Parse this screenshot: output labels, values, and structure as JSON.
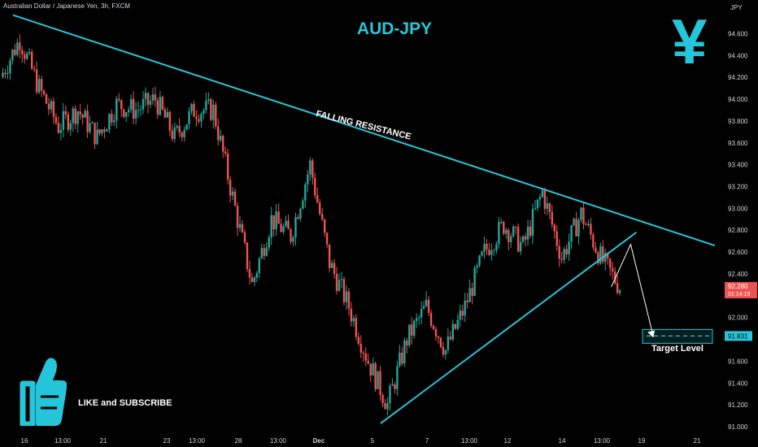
{
  "header": {
    "symbol_line": "Australian Dollar / Japanese Yen, 3h, FXCM",
    "currency": "JPY"
  },
  "title": "AUD-JPY",
  "icon": "yen-icon",
  "yen_glyph": "¥",
  "annotations": {
    "falling_resistance": "FALLING RESISTANCE",
    "target_level": "Target Level",
    "cta": "LIKE and SUBSCRIBE",
    "cta_icon": "thumbs-up-icon"
  },
  "colors": {
    "accent": "#26c6da",
    "bull": "#26a69a",
    "bear": "#ef5350",
    "background": "#000000"
  },
  "chart_data": {
    "type": "candlestick",
    "title": "AUD-JPY",
    "ylim": [
      91.0,
      94.7
    ],
    "y_ticks": [
      "94.600",
      "94.400",
      "94.200",
      "94.000",
      "93.800",
      "93.600",
      "93.400",
      "93.200",
      "93.000",
      "92.800",
      "92.600",
      "92.400",
      "92.200",
      "92.000",
      "91.600",
      "91.400",
      "91.200",
      "91.000"
    ],
    "x_ticks": [
      "16",
      "13:00",
      "21",
      "23",
      "13:00",
      "28",
      "13:00",
      "Dec",
      "5",
      "7",
      "13:00",
      "12",
      "14",
      "13:00",
      "19",
      "21"
    ],
    "current_price": {
      "label": "92.280",
      "value": 92.28,
      "countdown": "01:14:19"
    },
    "target_price": {
      "label": "91.831",
      "value": 91.831
    },
    "resistance_line": {
      "label": "FALLING RESISTANCE",
      "from": {
        "date": "Nov 15",
        "price": 94.77
      },
      "to": {
        "date": "Dec 21",
        "price": 92.66
      }
    },
    "support_line": {
      "from": {
        "date": "Dec 5",
        "price": 91.03
      },
      "to": {
        "date": "Dec 18",
        "price": 92.78
      }
    },
    "projection": [
      {
        "date": "Dec 17",
        "price": 92.28
      },
      {
        "date": "Dec 18",
        "price": 92.67
      },
      {
        "date": "Dec 19",
        "price": 91.83
      }
    ],
    "price_path": [
      {
        "date": "Nov 15",
        "price": 94.2
      },
      {
        "date": "Nov 16",
        "price": 94.55
      },
      {
        "date": "Nov 17",
        "price": 94.1
      },
      {
        "date": "Nov 18",
        "price": 93.75
      },
      {
        "date": "Nov 19",
        "price": 93.9
      },
      {
        "date": "Nov 20",
        "price": 93.65
      },
      {
        "date": "Nov 21",
        "price": 93.95
      },
      {
        "date": "Nov 22",
        "price": 93.9
      },
      {
        "date": "Nov 23",
        "price": 94.0
      },
      {
        "date": "Nov 24",
        "price": 93.65
      },
      {
        "date": "Nov 25",
        "price": 93.9
      },
      {
        "date": "Nov 26",
        "price": 93.9
      },
      {
        "date": "Nov 27",
        "price": 93.1
      },
      {
        "date": "Nov 28",
        "price": 92.3
      },
      {
        "date": "Nov 29",
        "price": 92.9
      },
      {
        "date": "Nov 30",
        "price": 92.75
      },
      {
        "date": "Dec 1",
        "price": 93.4
      },
      {
        "date": "Dec 2",
        "price": 92.5
      },
      {
        "date": "Dec 3",
        "price": 92.1
      },
      {
        "date": "Dec 4",
        "price": 91.6
      },
      {
        "date": "Dec 5",
        "price": 91.2
      },
      {
        "date": "Dec 6",
        "price": 91.8
      },
      {
        "date": "Dec 7",
        "price": 92.1
      },
      {
        "date": "Dec 8",
        "price": 91.7
      },
      {
        "date": "Dec 9",
        "price": 92.1
      },
      {
        "date": "Dec 10",
        "price": 92.6
      },
      {
        "date": "Dec 11",
        "price": 92.85
      },
      {
        "date": "Dec 12",
        "price": 92.65
      },
      {
        "date": "Dec 13",
        "price": 93.15
      },
      {
        "date": "Dec 14",
        "price": 92.55
      },
      {
        "date": "Dec 15",
        "price": 92.95
      },
      {
        "date": "Dec 16",
        "price": 92.55
      },
      {
        "date": "Dec 17",
        "price": 92.28
      }
    ]
  }
}
